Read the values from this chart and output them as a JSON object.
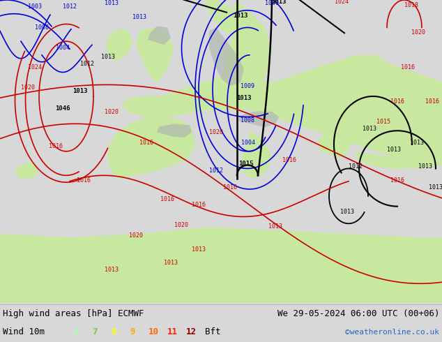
{
  "title_left": "High wind areas [hPa] ECMWF",
  "title_right": "We 29-05-2024 06:00 UTC (00+06)",
  "wind_label": "Wind 10m",
  "bft_label": "Bft",
  "copyright": "©weatheronline.co.uk",
  "bft_values": [
    "6",
    "7",
    "8",
    "9",
    "10",
    "11",
    "12"
  ],
  "bft_colors": [
    "#aaffaa",
    "#77cc44",
    "#ffff00",
    "#ffaa00",
    "#ff6600",
    "#ff2200",
    "#990000"
  ],
  "land_color": "#c8e8a0",
  "ocean_color": "#dde8ee",
  "mountain_color": "#b0b8b0",
  "bottom_bg": "#d8d8d8",
  "fig_width": 6.34,
  "fig_height": 4.9,
  "dpi": 100,
  "blue_color": "#0000dd",
  "red_color": "#cc0000",
  "black_color": "#000000"
}
